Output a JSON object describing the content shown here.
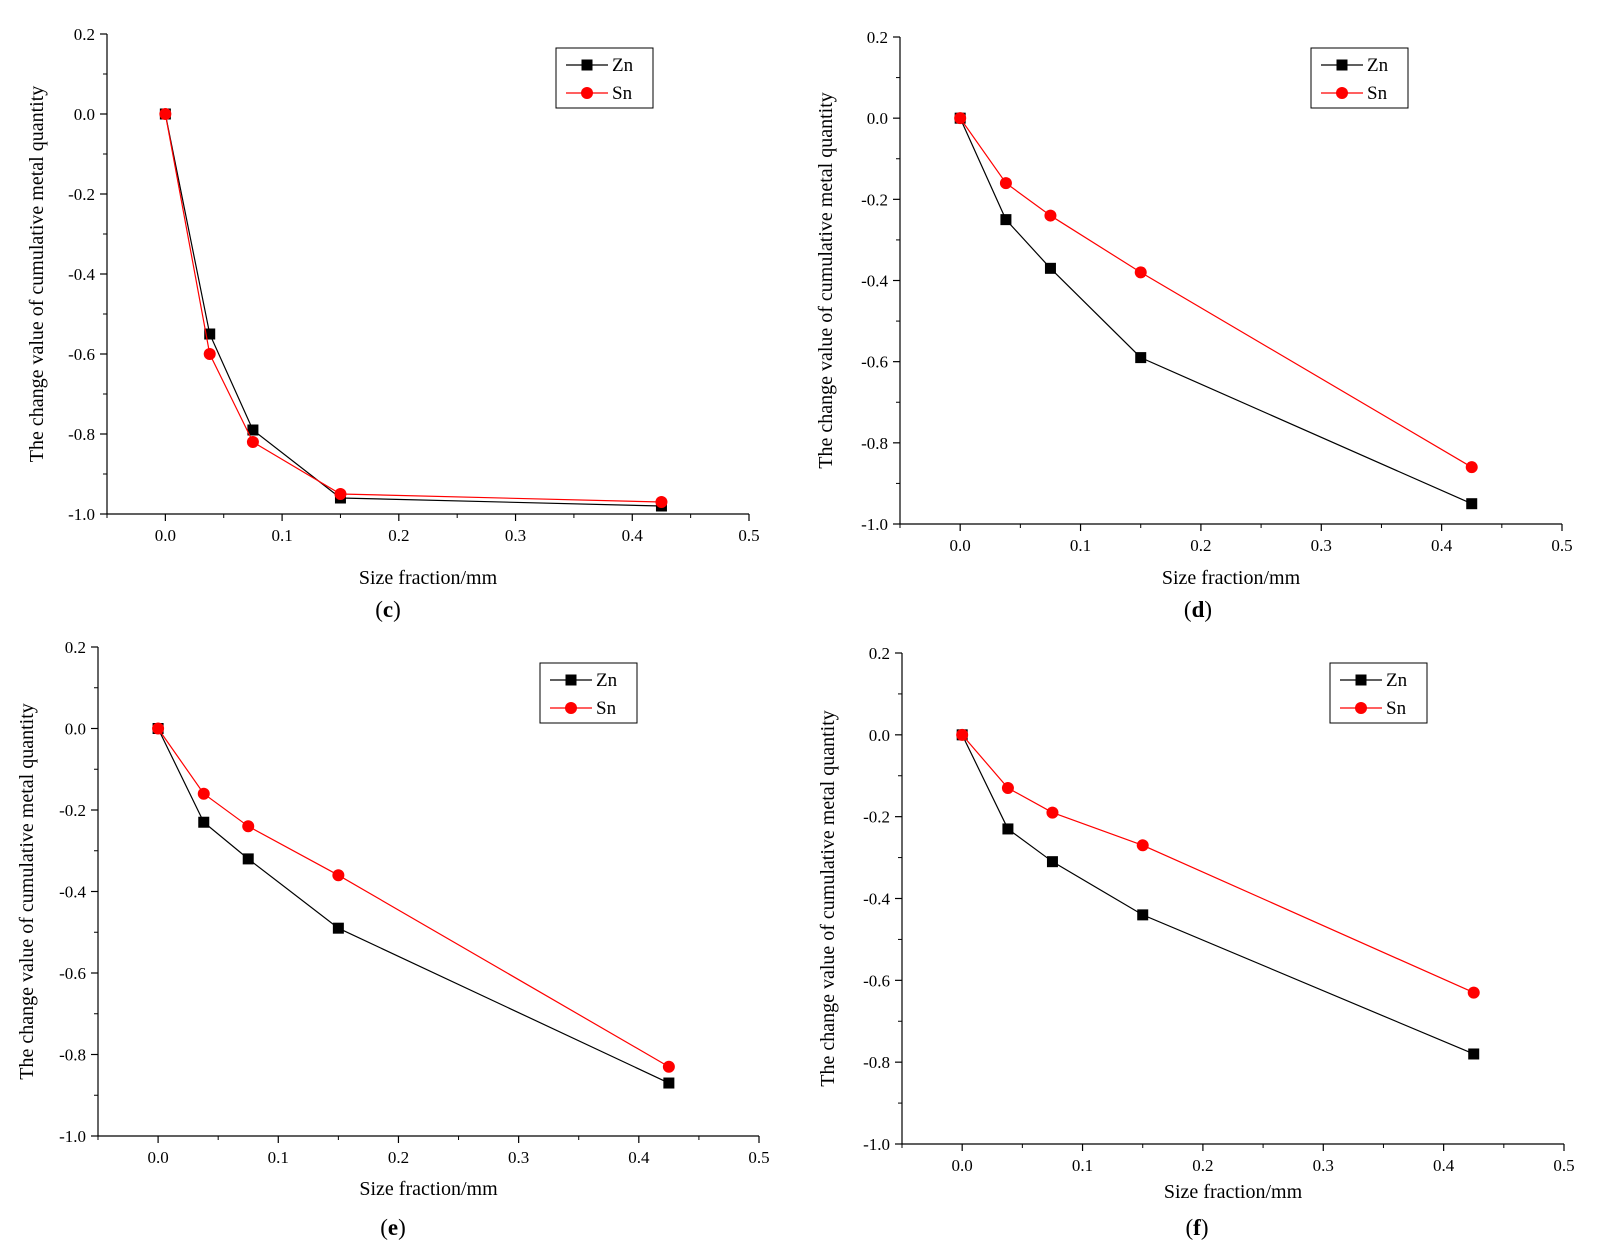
{
  "colors": {
    "zn": "#000000",
    "sn": "#ff0000"
  },
  "chart_data": [
    {
      "type": "line",
      "panel_label": [
        "(",
        "c",
        ")"
      ],
      "xlabel": "Size fraction/mm",
      "ylabel": "The change value of cumulative metal quantity",
      "xlim": [
        -0.05,
        0.5
      ],
      "ylim": [
        -1.0,
        0.2
      ],
      "xticks": [
        "0.0",
        "0.1",
        "0.2",
        "0.3",
        "0.4",
        "0.5"
      ],
      "yticks": [
        "0.2",
        "0.0",
        "-0.2",
        "-0.4",
        "-0.6",
        "-0.8",
        "-1.0"
      ],
      "legend": [
        "Zn",
        "Sn"
      ],
      "x": [
        0,
        0.038,
        0.075,
        0.15,
        0.425
      ],
      "series": [
        {
          "name": "Zn",
          "values": [
            0,
            -0.55,
            -0.79,
            -0.96,
            -0.98
          ]
        },
        {
          "name": "Sn",
          "values": [
            0,
            -0.6,
            -0.82,
            -0.95,
            -0.97
          ]
        }
      ]
    },
    {
      "type": "line",
      "panel_label": [
        "(",
        "d",
        ")"
      ],
      "xlabel": "Size fraction/mm",
      "ylabel": "The change value of cumulative metal quantity",
      "xlim": [
        -0.05,
        0.5
      ],
      "ylim": [
        -1.0,
        0.2
      ],
      "xticks": [
        "0.0",
        "0.1",
        "0.2",
        "0.3",
        "0.4",
        "0.5"
      ],
      "yticks": [
        "0.2",
        "0.0",
        "-0.2",
        "-0.4",
        "-0.6",
        "-0.8",
        "-1.0"
      ],
      "legend": [
        "Zn",
        "Sn"
      ],
      "x": [
        0,
        0.038,
        0.075,
        0.15,
        0.425
      ],
      "series": [
        {
          "name": "Zn",
          "values": [
            0,
            -0.25,
            -0.37,
            -0.59,
            -0.95
          ]
        },
        {
          "name": "Sn",
          "values": [
            0,
            -0.16,
            -0.24,
            -0.38,
            -0.86
          ]
        }
      ]
    },
    {
      "type": "line",
      "panel_label": [
        "(",
        "e",
        ")"
      ],
      "xlabel": "Size fraction/mm",
      "ylabel": "The change value of cumulative metal quantity",
      "xlim": [
        -0.05,
        0.5
      ],
      "ylim": [
        -1.0,
        0.2
      ],
      "xticks": [
        "0.0",
        "0.1",
        "0.2",
        "0.3",
        "0.4",
        "0.5"
      ],
      "yticks": [
        "0.2",
        "0.0",
        "-0.2",
        "-0.4",
        "-0.6",
        "-0.8",
        "-1.0"
      ],
      "legend": [
        "Zn",
        "Sn"
      ],
      "x": [
        0,
        0.038,
        0.075,
        0.15,
        0.425
      ],
      "series": [
        {
          "name": "Zn",
          "values": [
            0,
            -0.23,
            -0.32,
            -0.49,
            -0.87
          ]
        },
        {
          "name": "Sn",
          "values": [
            0,
            -0.16,
            -0.24,
            -0.36,
            -0.83
          ]
        }
      ]
    },
    {
      "type": "line",
      "panel_label": [
        "(",
        "f",
        ")"
      ],
      "xlabel": "Size fraction/mm",
      "ylabel": "The change value of cumulative metal quantity",
      "xlim": [
        -0.05,
        0.5
      ],
      "ylim": [
        -1.0,
        0.2
      ],
      "xticks": [
        "0.0",
        "0.1",
        "0.2",
        "0.3",
        "0.4",
        "0.5"
      ],
      "yticks": [
        "0.2",
        "0.0",
        "-0.2",
        "-0.4",
        "-0.6",
        "-0.8",
        "-1.0"
      ],
      "legend": [
        "Zn",
        "Sn"
      ],
      "x": [
        0,
        0.038,
        0.075,
        0.15,
        0.425
      ],
      "series": [
        {
          "name": "Zn",
          "values": [
            0,
            -0.23,
            -0.31,
            -0.44,
            -0.78
          ]
        },
        {
          "name": "Sn",
          "values": [
            0,
            -0.13,
            -0.19,
            -0.27,
            -0.63
          ]
        }
      ]
    }
  ]
}
